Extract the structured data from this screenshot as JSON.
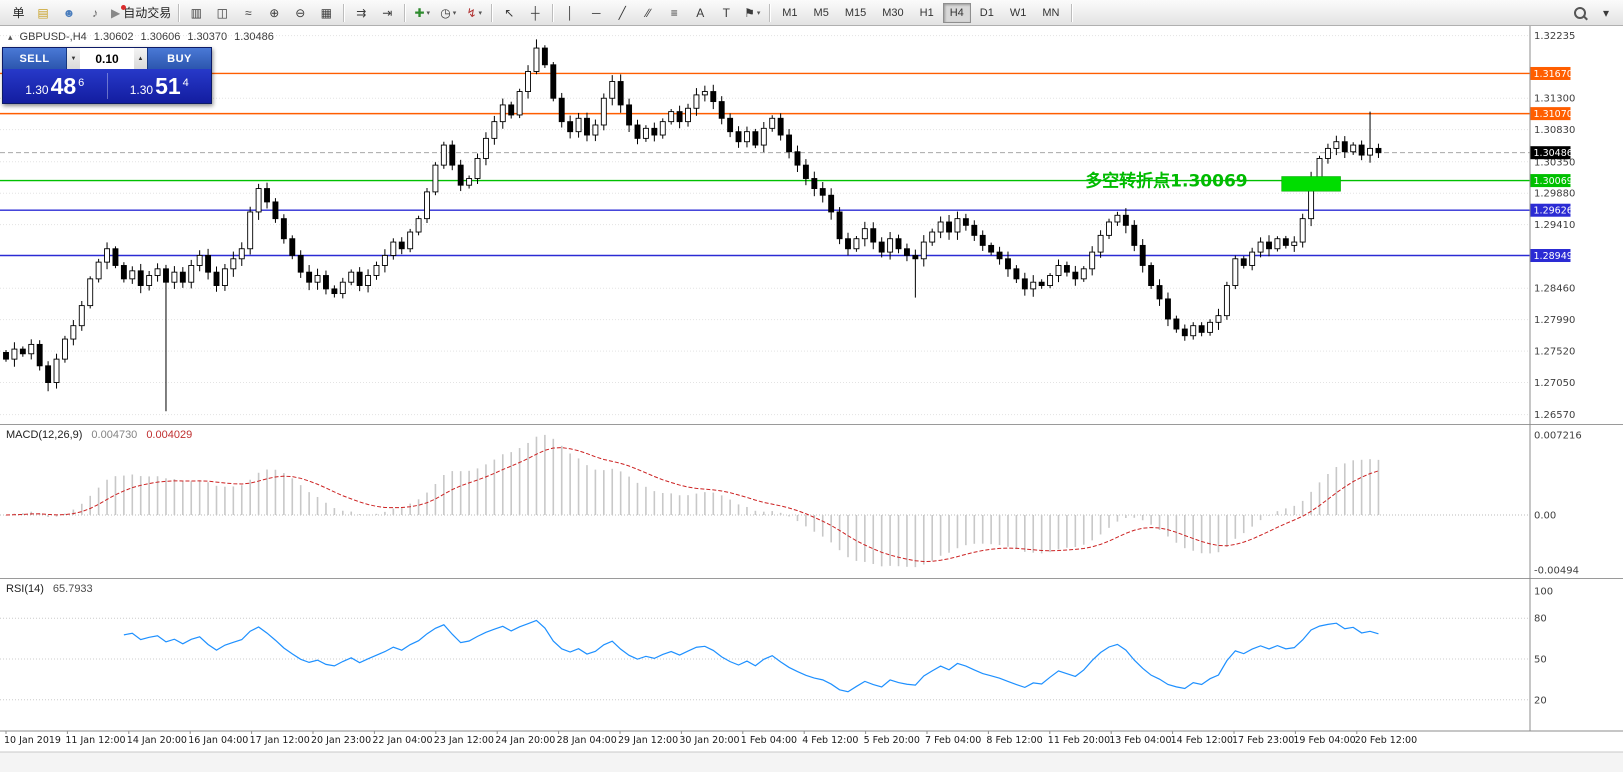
{
  "toolbar": {
    "groups": [
      {
        "items": [
          {
            "name": "new-order-button",
            "label": "单"
          },
          {
            "name": "charts-profile-button",
            "glyph": "▤",
            "color": "#c9a227"
          },
          {
            "name": "community-button",
            "glyph": "☻",
            "color": "#4a7dbd"
          },
          {
            "name": "alerts-button",
            "glyph": "♪",
            "color": "#666666"
          },
          {
            "name": "autotrading-button",
            "glyph": "▶",
            "color": "#888888",
            "label": "自动交易",
            "dot": true
          }
        ]
      },
      {
        "items": [
          {
            "name": "bar-chart-button",
            "glyph": "▥"
          },
          {
            "name": "candlestick-chart-button",
            "glyph": "◫"
          },
          {
            "name": "line-chart-button",
            "glyph": "≈"
          },
          {
            "name": "zoom-in-button",
            "glyph": "⊕"
          },
          {
            "name": "zoom-out-button",
            "glyph": "⊖"
          },
          {
            "name": "tile-windows-button",
            "glyph": "▦"
          }
        ]
      },
      {
        "items": [
          {
            "name": "auto-scroll-button",
            "glyph": "⇉"
          },
          {
            "name": "chart-shift-button",
            "glyph": "⇥"
          }
        ]
      },
      {
        "items": [
          {
            "name": "new-chart-button",
            "glyph": "✚",
            "color": "#2e8b2e",
            "dropdown": true
          },
          {
            "name": "periods-button",
            "glyph": "◷",
            "dropdown": true
          },
          {
            "name": "indicators-button",
            "glyph": "↯",
            "color": "#b03030",
            "dropdown": true
          }
        ]
      },
      {
        "items": [
          {
            "name": "cursor-button",
            "glyph": "↖"
          },
          {
            "name": "crosshair-button",
            "glyph": "┼"
          }
        ]
      },
      {
        "items": [
          {
            "name": "vertical-line-button",
            "glyph": "│"
          },
          {
            "name": "horizontal-line-button",
            "glyph": "─"
          },
          {
            "name": "trendline-button",
            "glyph": "╱"
          },
          {
            "name": "channel-button",
            "glyph": "∕∕"
          },
          {
            "name": "fibonacci-button",
            "glyph": "≡"
          },
          {
            "name": "text-button",
            "glyph": "A"
          },
          {
            "name": "label-button",
            "glyph": "T"
          },
          {
            "name": "shapes-button",
            "glyph": "⚑",
            "dropdown": true
          }
        ]
      }
    ],
    "timeframes": [
      "M1",
      "M5",
      "M15",
      "M30",
      "H1",
      "H4",
      "D1",
      "W1",
      "MN"
    ],
    "active_timeframe": "H4",
    "right": [
      {
        "name": "search-button",
        "shape": "magnifier"
      },
      {
        "name": "toolbar-options-button",
        "glyph": "▾"
      }
    ]
  },
  "one_click": {
    "sell_label": "SELL",
    "buy_label": "BUY",
    "lot_value": "0.10",
    "lot_down_glyph": "▼",
    "lot_up_glyph": "▲",
    "sell_price_prefix": "1.30",
    "sell_price_big": "48",
    "sell_price_sup": "6",
    "buy_price_prefix": "1.30",
    "buy_price_big": "51",
    "buy_price_sup": "4"
  },
  "chart_data": {
    "type": "candlestick",
    "symbol": "GBPUSD-",
    "timeframe": "H4",
    "ohlc_header": {
      "toggle_glyph": "▴",
      "symbol_period": "GBPUSD-,H4",
      "open": "1.30602",
      "high": "1.30606",
      "low": "1.30370",
      "close": "1.30486"
    },
    "price_range": {
      "min": 1.2652,
      "max": 1.3232
    },
    "first_open": 1.275,
    "closes": [
      1.274,
      1.2755,
      1.2748,
      1.2762,
      1.273,
      1.2705,
      1.274,
      1.277,
      1.279,
      1.282,
      1.286,
      1.2885,
      1.2905,
      1.288,
      1.286,
      1.2872,
      1.285,
      1.2865,
      1.2875,
      1.2855,
      1.287,
      1.2855,
      1.288,
      1.2895,
      1.287,
      1.285,
      1.2875,
      1.289,
      1.2905,
      1.296,
      1.2995,
      1.2975,
      1.295,
      1.292,
      1.2895,
      1.287,
      1.2855,
      1.2865,
      1.2845,
      1.2838,
      1.2855,
      1.287,
      1.285,
      1.2865,
      1.288,
      1.2895,
      1.2915,
      1.2905,
      1.293,
      1.295,
      1.299,
      1.303,
      1.306,
      1.303,
      1.3,
      1.301,
      1.304,
      1.307,
      1.3095,
      1.312,
      1.3105,
      1.314,
      1.317,
      1.3205,
      1.318,
      1.313,
      1.3095,
      1.308,
      1.31,
      1.3075,
      1.309,
      1.313,
      1.3155,
      1.312,
      1.309,
      1.307,
      1.3085,
      1.3075,
      1.3095,
      1.311,
      1.3095,
      1.3115,
      1.3135,
      1.314,
      1.3125,
      1.31,
      1.308,
      1.3065,
      1.308,
      1.306,
      1.3085,
      1.31,
      1.3075,
      1.305,
      1.303,
      1.301,
      1.2995,
      1.2985,
      1.296,
      1.292,
      1.2905,
      1.292,
      1.2935,
      1.2915,
      1.29,
      1.292,
      1.2905,
      1.2895,
      1.289,
      1.2915,
      1.293,
      1.2945,
      1.293,
      1.295,
      1.294,
      1.2925,
      1.291,
      1.29,
      1.289,
      1.2875,
      1.286,
      1.2845,
      1.2855,
      1.285,
      1.2865,
      1.288,
      1.287,
      1.286,
      1.2875,
      1.29,
      1.2925,
      1.2945,
      1.2955,
      1.294,
      1.291,
      1.288,
      1.285,
      1.283,
      1.28,
      1.2785,
      1.2775,
      1.279,
      1.278,
      1.2795,
      1.2805,
      1.285,
      1.289,
      1.288,
      1.29,
      1.2915,
      1.2905,
      1.292,
      1.291,
      1.2915,
      1.295,
      1.301,
      1.304,
      1.3055,
      1.3065,
      1.305,
      1.306,
      1.3045,
      1.3055,
      1.30486
    ],
    "wick_overrides": {
      "5": {
        "low": 1.2692
      },
      "19": {
        "low": 1.2662
      },
      "30": {
        "high": 1.3002
      },
      "63": {
        "high": 1.3218
      },
      "108": {
        "low": 1.2832
      },
      "162": {
        "high": 1.311
      }
    },
    "levels": [
      {
        "price": 1.3167,
        "label": "1.31670",
        "color": "#ff5e00"
      },
      {
        "price": 1.3107,
        "label": "1.31070",
        "color": "#ff5e00"
      },
      {
        "price": 1.30069,
        "label": "1.30069",
        "color": "#00c000"
      },
      {
        "price": 1.29626,
        "label": "1.29626",
        "color": "#2b2bd4"
      },
      {
        "price": 1.28949,
        "label": "1.28949",
        "color": "#2b2bd4"
      }
    ],
    "bid": {
      "price": 1.30486,
      "label": "1.30486",
      "badge_color": "#000000"
    },
    "zone": {
      "start_index": 151.5,
      "end_index": 158.5,
      "top": 1.3013,
      "bottom": 1.2991,
      "color": "#00dd00"
    },
    "annotation": {
      "text": "多空转折点1.30069",
      "color": "#00bb00",
      "price": 1.3007
    },
    "price_ticks": [
      "1.32235",
      "1.31300",
      "1.30830",
      "1.30350",
      "1.29880",
      "1.29410",
      "1.28460",
      "1.27990",
      "1.27520",
      "1.27050",
      "1.26570"
    ],
    "time_labels": [
      "10 Jan 2019",
      "11 Jan 12:00",
      "14 Jan 20:00",
      "16 Jan 04:00",
      "17 Jan 12:00",
      "20 Jan 23:00",
      "22 Jan 04:00",
      "23 Jan 12:00",
      "24 Jan 20:00",
      "28 Jan 04:00",
      "29 Jan 12:00",
      "30 Jan 20:00",
      "1 Feb 04:00",
      "4 Feb 12:00",
      "5 Feb 20:00",
      "7 Feb 04:00",
      "8 Feb 12:00",
      "11 Feb 20:00",
      "13 Feb 04:00",
      "14 Feb 12:00",
      "17 Feb 23:00",
      "19 Feb 04:00",
      "20 Feb 12:00"
    ],
    "indicators": [
      {
        "type": "MACD",
        "label": "MACD(12,26,9)",
        "params": [
          12,
          26,
          9
        ],
        "value_main": "0.004730",
        "value_signal": "0.004029",
        "scale_labels": [
          "0.007216",
          "0.00",
          "-0.00494"
        ],
        "histogram_color": "#c8c8c8",
        "signal_color": "#cc2222"
      },
      {
        "type": "RSI",
        "label": "RSI(14)",
        "params": [
          14
        ],
        "value": "65.7933",
        "scale_labels": [
          "100",
          "80",
          "50",
          "20"
        ],
        "levels": [
          80,
          50,
          20
        ],
        "line_color": "#1e90ff"
      }
    ]
  }
}
